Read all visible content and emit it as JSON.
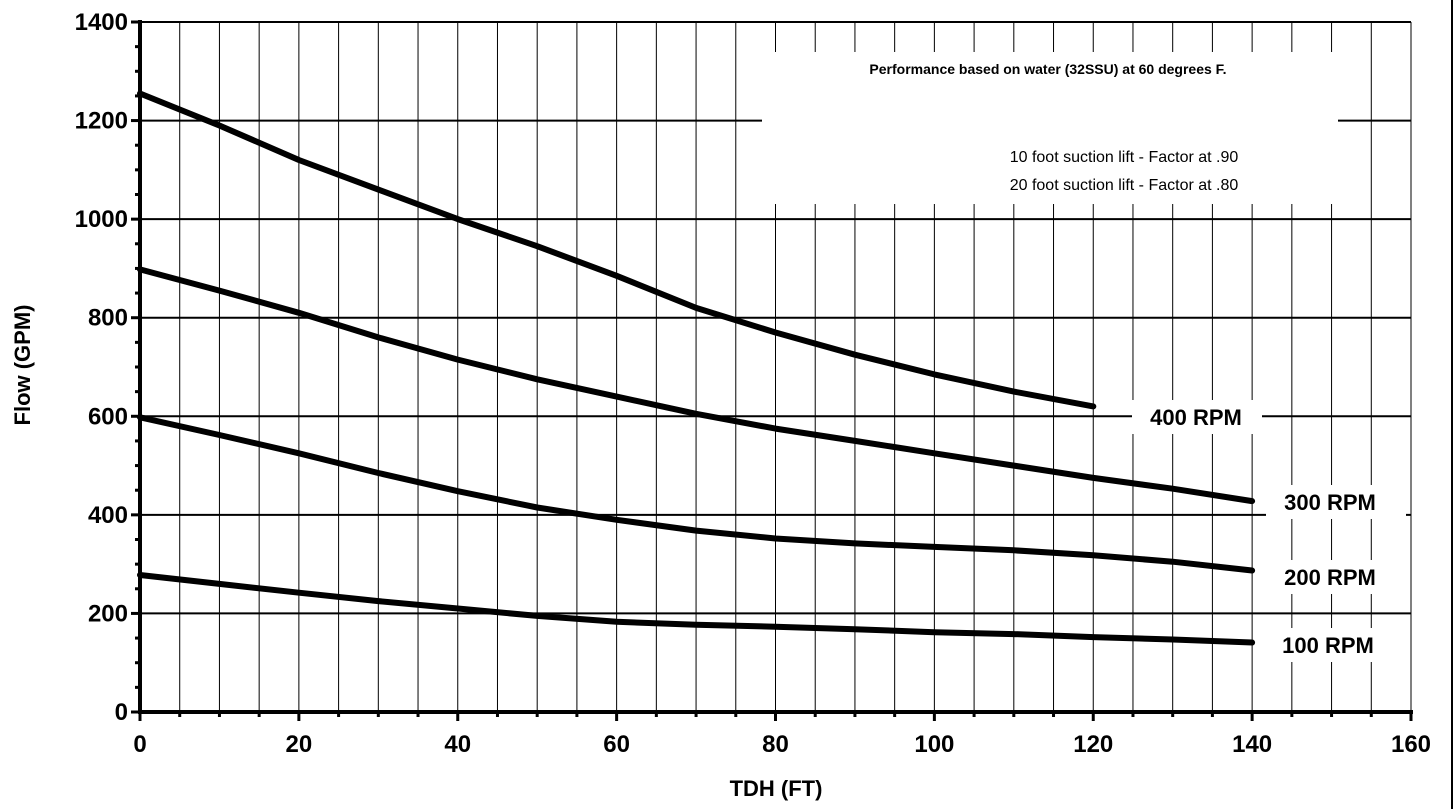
{
  "chart_data": {
    "type": "line",
    "xlabel": "TDH (FT)",
    "ylabel": "Flow (GPM)",
    "xlim": [
      0,
      160
    ],
    "ylim": [
      0,
      1400
    ],
    "x_ticks": [
      0,
      20,
      40,
      60,
      80,
      100,
      120,
      140,
      160
    ],
    "y_ticks": [
      0,
      200,
      400,
      600,
      800,
      1000,
      1200,
      1400
    ],
    "grid": {
      "vertical_step": 5,
      "horizontal_step": 200
    },
    "annotations": {
      "line1": "Performance based on water (32SSU) at 60 degrees F.",
      "line2": "10 foot suction lift - Factor at .90",
      "line3": "20 foot suction lift - Factor at .80"
    },
    "series": [
      {
        "name": "400 RPM",
        "x": [
          0,
          10,
          20,
          30,
          40,
          50,
          60,
          70,
          80,
          90,
          100,
          110,
          120
        ],
        "y": [
          1255,
          1190,
          1120,
          1060,
          1000,
          945,
          885,
          820,
          770,
          725,
          685,
          650,
          620
        ]
      },
      {
        "name": "300 RPM",
        "x": [
          0,
          10,
          20,
          30,
          40,
          50,
          60,
          70,
          80,
          90,
          100,
          110,
          120,
          130,
          140
        ],
        "y": [
          898,
          855,
          810,
          760,
          715,
          675,
          640,
          605,
          575,
          550,
          525,
          500,
          475,
          453,
          428
        ]
      },
      {
        "name": "200 RPM",
        "x": [
          0,
          10,
          20,
          30,
          40,
          50,
          60,
          70,
          80,
          90,
          100,
          110,
          120,
          130,
          140
        ],
        "y": [
          598,
          562,
          525,
          485,
          448,
          415,
          390,
          368,
          352,
          342,
          335,
          328,
          318,
          305,
          287
        ]
      },
      {
        "name": "100 RPM",
        "x": [
          0,
          10,
          20,
          30,
          40,
          50,
          60,
          70,
          80,
          90,
          100,
          110,
          120,
          130,
          140
        ],
        "y": [
          278,
          260,
          242,
          225,
          210,
          195,
          183,
          177,
          173,
          168,
          162,
          158,
          152,
          147,
          141
        ]
      }
    ]
  }
}
